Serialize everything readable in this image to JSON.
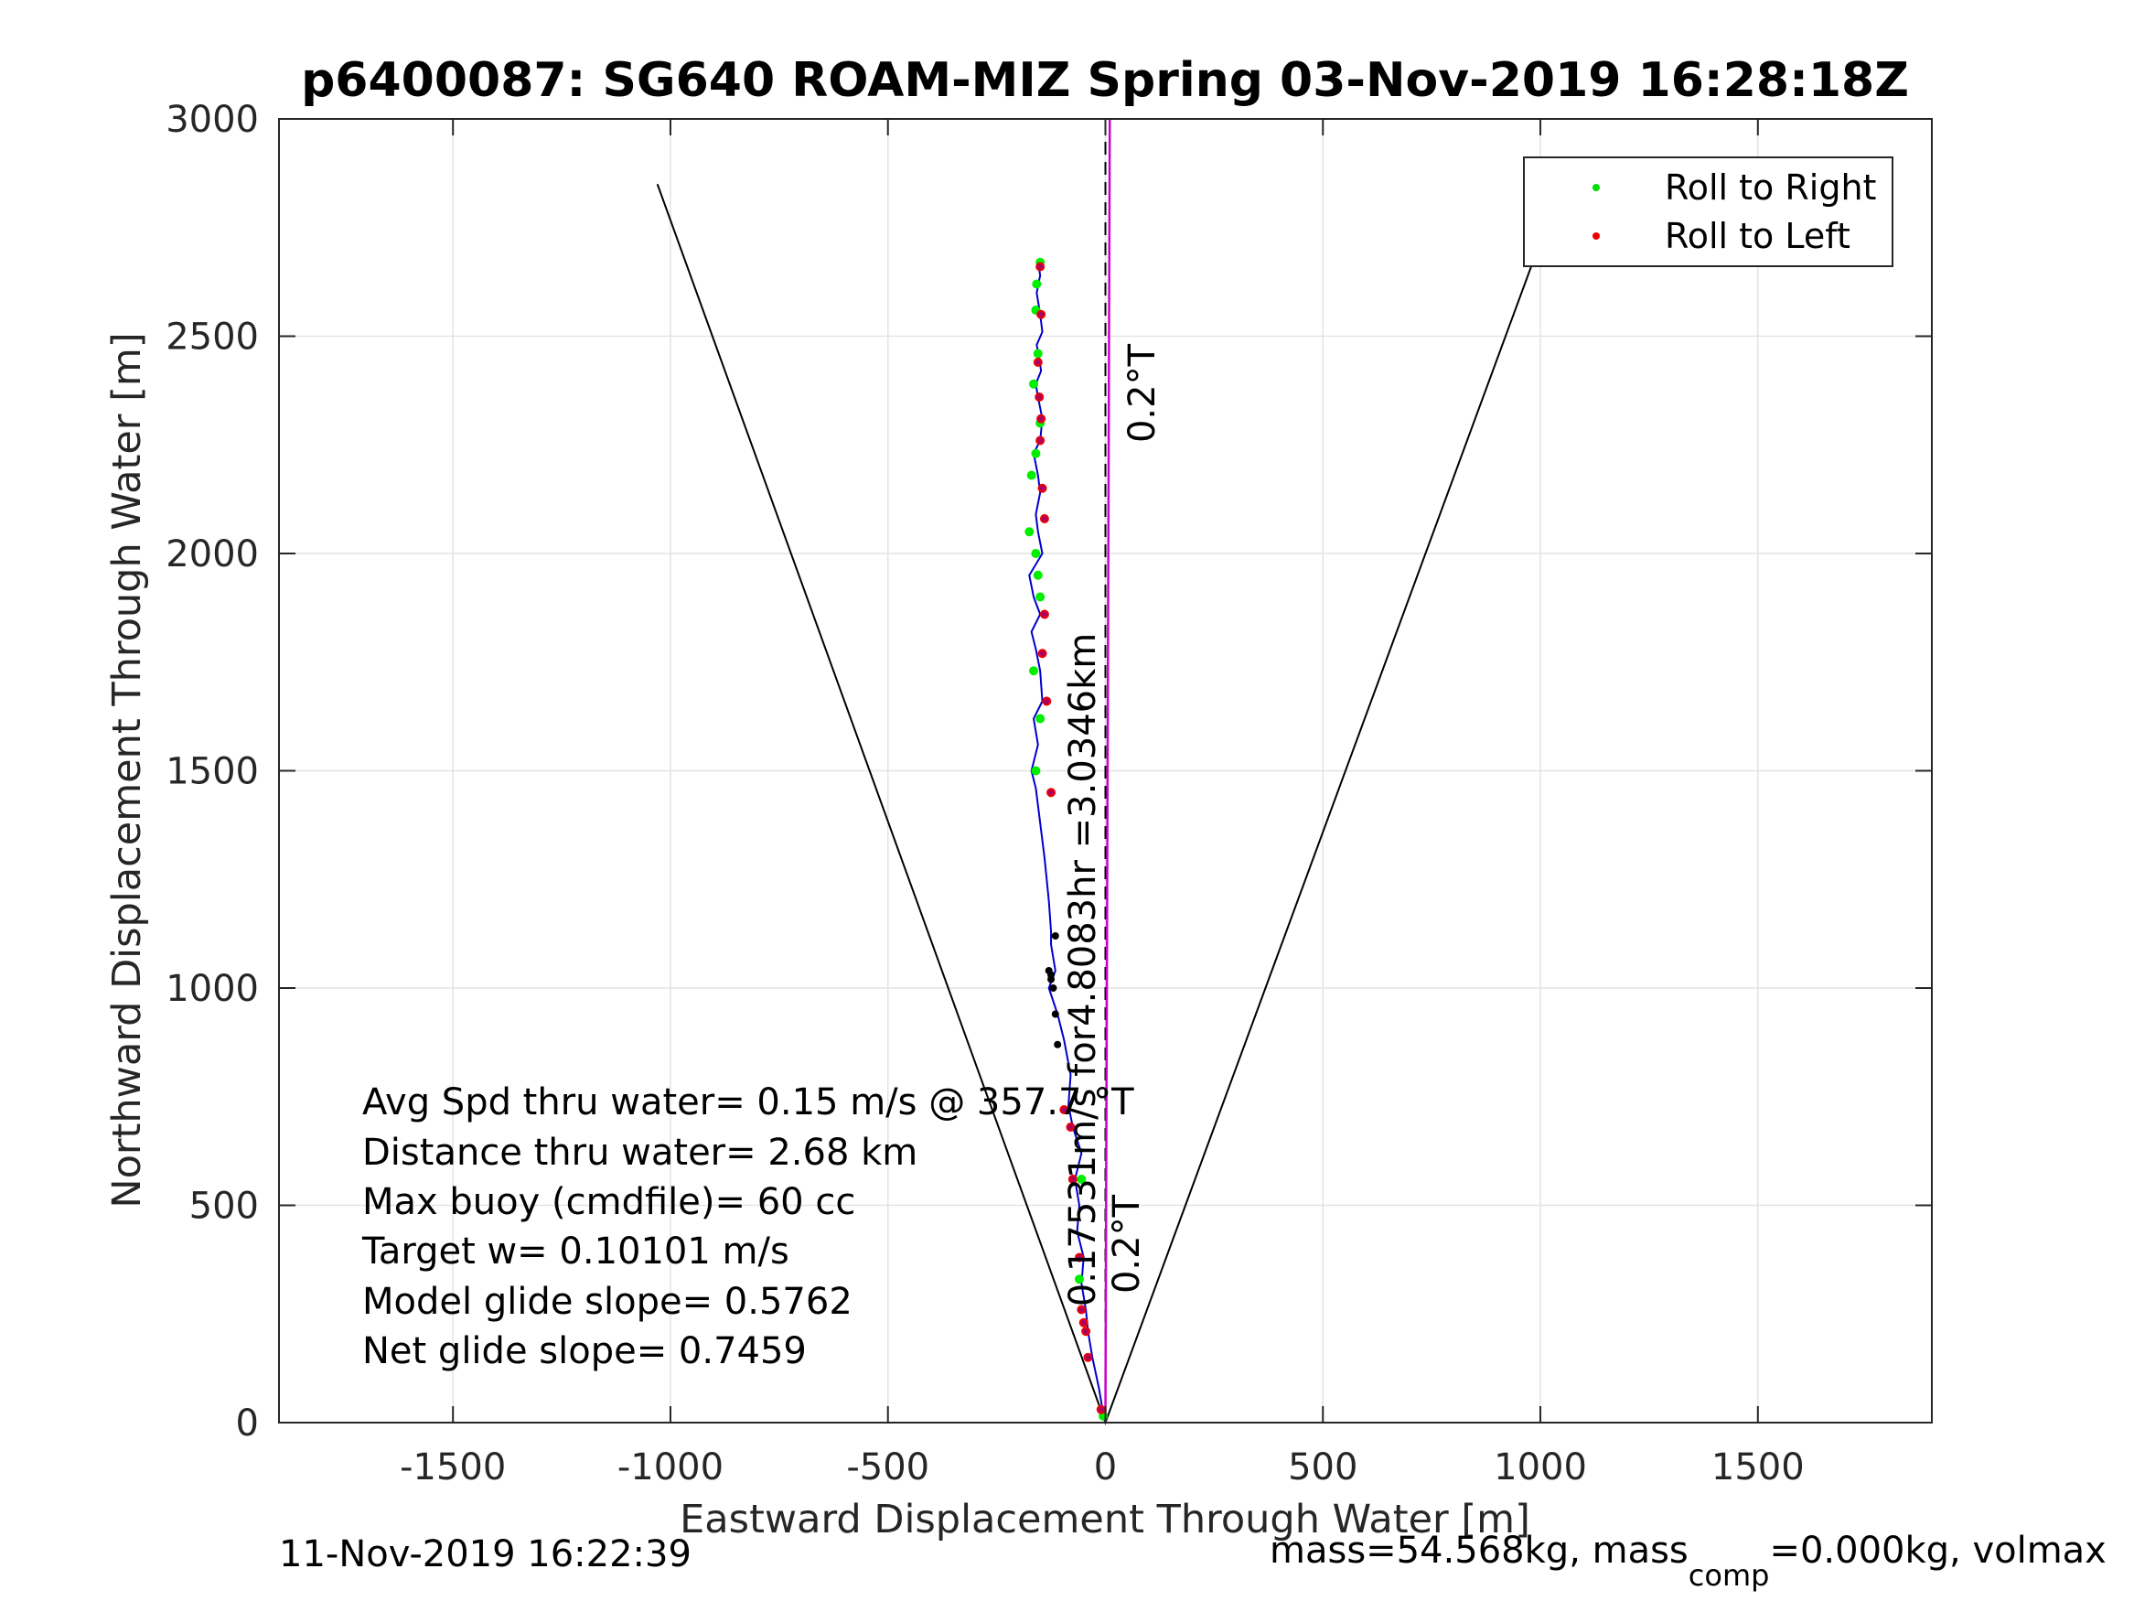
{
  "chart_data": {
    "type": "line",
    "title": "p6400087: SG640 ROAM-MIZ Spring 03-Nov-2019 16:28:18Z",
    "xlabel": "Eastward Displacement Through Water [m]",
    "ylabel": "Northward Displacement Through Water [m]",
    "xlim": [
      -1900,
      1900
    ],
    "ylim": [
      0,
      3000
    ],
    "xticks": [
      -1500,
      -1000,
      -500,
      0,
      500,
      1000,
      1500
    ],
    "yticks": [
      0,
      500,
      1000,
      1500,
      2000,
      2500,
      3000
    ],
    "xtick_labels": [
      "-1500",
      "-1000",
      "-500",
      "0",
      "500",
      "1000",
      "1500"
    ],
    "ytick_labels": [
      "0",
      "500",
      "1000",
      "1500",
      "2000",
      "2500",
      "3000"
    ],
    "grid": true,
    "legend_position": "top-right",
    "legend": [
      {
        "label": "Roll to Right",
        "color": "#00dd00"
      },
      {
        "label": "Roll to Left",
        "color": "#ee0000"
      }
    ],
    "colors": {
      "track": "#0000cc",
      "roll_right": "#00ee00",
      "roll_left": "#ee0000",
      "overlap": "#aa0066",
      "heading_line": "#cc00cc",
      "cone": "#000000",
      "centerline": "#000000"
    },
    "track": {
      "x": [
        0,
        -5,
        -15,
        -30,
        -40,
        -45,
        -55,
        -50,
        -65,
        -60,
        -70,
        -55,
        -75,
        -85,
        -80,
        -95,
        -110,
        -130,
        -115,
        -125,
        -125,
        -130,
        -140,
        -150,
        -160,
        -170,
        -155,
        -165,
        -145,
        -150,
        -160,
        -170,
        -150,
        -165,
        -175,
        -145,
        -155,
        -160,
        -150,
        -155,
        -165,
        -150,
        -145,
        -155,
        -160,
        -148,
        -152,
        -158,
        -145,
        -150,
        -158,
        -150,
        -155
      ],
      "y": [
        0,
        20,
        80,
        150,
        210,
        260,
        320,
        380,
        440,
        500,
        560,
        620,
        680,
        730,
        800,
        880,
        940,
        1000,
        1040,
        1100,
        1130,
        1200,
        1300,
        1380,
        1460,
        1500,
        1560,
        1620,
        1660,
        1730,
        1780,
        1820,
        1860,
        1900,
        1950,
        2000,
        2050,
        2090,
        2140,
        2180,
        2230,
        2260,
        2310,
        2360,
        2390,
        2420,
        2450,
        2480,
        2510,
        2550,
        2600,
        2640,
        2670
      ]
    },
    "roll_right": {
      "x": [
        -5,
        -60,
        -55,
        -160,
        -150,
        -165,
        -150,
        -155,
        -160,
        -175,
        -170,
        -160,
        -150,
        -165,
        -155,
        -160,
        -158,
        -150
      ],
      "y": [
        15,
        330,
        560,
        1500,
        1620,
        1730,
        1900,
        1950,
        2000,
        2050,
        2180,
        2230,
        2300,
        2390,
        2460,
        2560,
        2620,
        2670
      ]
    },
    "roll_left": {
      "x": [
        -10,
        -40,
        -45,
        -50,
        -55,
        -60,
        -75,
        -80,
        -95,
        -125,
        -135,
        -145,
        -140,
        -140,
        -145,
        -150,
        -148,
        -152,
        -155,
        -148,
        -150
      ],
      "y": [
        30,
        150,
        210,
        230,
        260,
        380,
        560,
        680,
        720,
        1450,
        1660,
        1770,
        1860,
        2080,
        2150,
        2260,
        2310,
        2360,
        2440,
        2550,
        2660
      ]
    },
    "black_points": {
      "x": [
        -110,
        -115,
        -120,
        -125,
        -125,
        -130,
        -115
      ],
      "y": [
        870,
        940,
        1000,
        1020,
        1030,
        1040,
        1120
      ]
    },
    "cone": [
      {
        "x": [
          -1030,
          0,
          1045
        ],
        "y": [
          2850,
          0,
          2840
        ]
      }
    ],
    "heading_line": {
      "x": [
        0,
        10
      ],
      "y": [
        0,
        3000
      ]
    },
    "centerline": {
      "x": [
        0,
        0
      ],
      "y": [
        0,
        3000
      ]
    },
    "annotations": {
      "heading_top": "0.2°T",
      "heading_bottom": "0.2°T",
      "vertical_speed": "0.17531m/s for4.8083hr =3.0346km",
      "stats": [
        "Avg Spd thru water=  0.15 m/s @ 357.7 °T",
        "Distance thru water=  2.68 km",
        "Max buoy (cmdfile)= 60 cc",
        "Target w= 0.10101 m/s",
        "Model glide slope= 0.5762",
        "Net glide slope= 0.7459"
      ]
    },
    "footer_left": "11-Nov-2019 16:22:39",
    "footer_right_prefix": "mass=54.568kg, mass",
    "footer_right_sub": "comp",
    "footer_right_suffix": "=0.000kg, volmax"
  }
}
